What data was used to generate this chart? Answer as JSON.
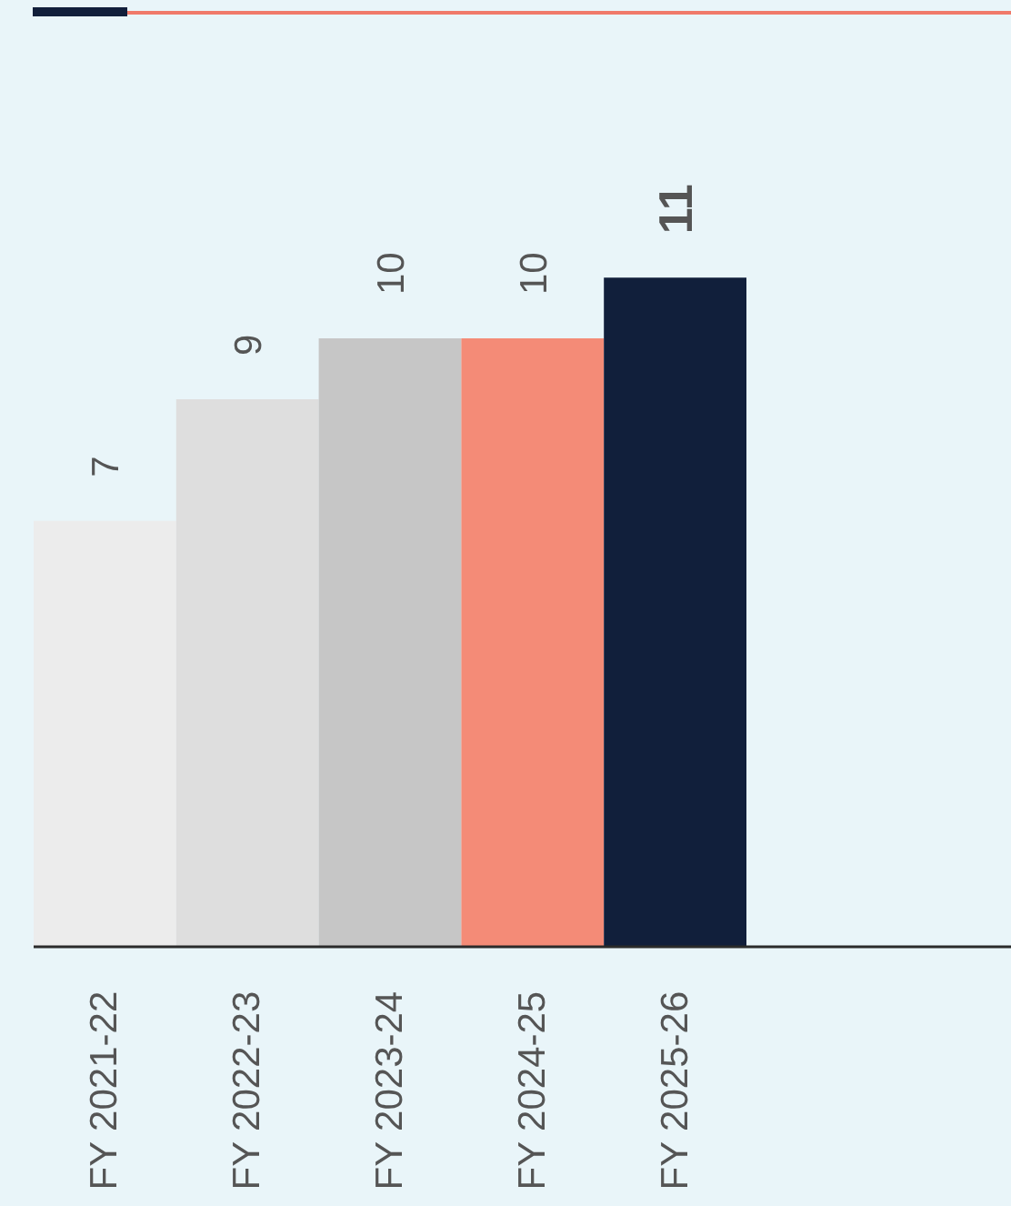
{
  "chart_data": {
    "type": "bar",
    "categories": [
      "FY 2021-22",
      "FY 2022-23",
      "FY 2023-24",
      "FY 2024-25",
      "FY 2025-26"
    ],
    "values": [
      7,
      9,
      10,
      10,
      11
    ],
    "colors": [
      "#ececec",
      "#dedede",
      "#c6c6c6",
      "#f48b77",
      "#111f3b"
    ],
    "data_labels": true,
    "tick_labels": "x"
  }
}
